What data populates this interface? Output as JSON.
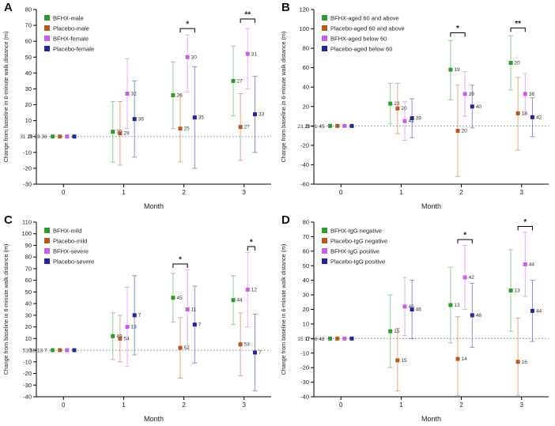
{
  "figure": {
    "background": "#ffffff",
    "axis_color": "#000000",
    "zero_line_color": "#888888"
  },
  "chart_data": [
    {
      "panel_label": "A",
      "type": "scatter",
      "xlabel": "Month",
      "ylabel": "Change from baseline in 6-minute walk distance (m)",
      "ylim": [
        -30,
        80
      ],
      "ytick": 10,
      "months": [
        0,
        1,
        2,
        3
      ],
      "legend_position": "top-left",
      "grid": false,
      "zero_line": true,
      "baseline_n_label": "31 29 33 36",
      "series": [
        {
          "name": "BFHX-male",
          "color": "#339933",
          "values": [
            0,
            3,
            26,
            35
          ],
          "lo": [
            0,
            -16,
            5,
            13
          ],
          "hi": [
            0,
            22,
            47,
            57
          ],
          "n": [
            31,
            30,
            26,
            27
          ]
        },
        {
          "name": "Placebo-male",
          "color": "#b25a22",
          "values": [
            0,
            2,
            5,
            6
          ],
          "lo": [
            0,
            -18,
            -16,
            -15
          ],
          "hi": [
            0,
            22,
            26,
            27
          ],
          "n": [
            29,
            29,
            25,
            27
          ]
        },
        {
          "name": "BFHX-female",
          "color": "#c95fde",
          "values": [
            0,
            27,
            50,
            52
          ],
          "lo": [
            0,
            5,
            28,
            30
          ],
          "hi": [
            0,
            49,
            64,
            68
          ],
          "n": [
            33,
            32,
            30,
            31
          ]
        },
        {
          "name": "Placebo-female",
          "color": "#23268f",
          "values": [
            0,
            11,
            12,
            14
          ],
          "lo": [
            0,
            -13,
            -20,
            -10
          ],
          "hi": [
            0,
            35,
            44,
            38
          ],
          "n": [
            36,
            36,
            35,
            33
          ]
        }
      ],
      "significance": [
        {
          "month": 2,
          "from_series": 1,
          "to_series": 3,
          "y": 68,
          "label": "*"
        },
        {
          "month": 3,
          "from_series": 1,
          "to_series": 3,
          "y": 74,
          "label": "**"
        }
      ]
    },
    {
      "panel_label": "B",
      "type": "scatter",
      "xlabel": "Month",
      "ylabel": "Change from baseline in 6-minute walk distance (m)",
      "ylim": [
        -60,
        120
      ],
      "ytick": 20,
      "months": [
        0,
        1,
        2,
        3
      ],
      "legend_position": "top-left",
      "grid": false,
      "zero_line": true,
      "baseline_n_label": "23 20 41 45",
      "series": [
        {
          "name": "BFHX-aged 60 and above",
          "color": "#339933",
          "values": [
            0,
            23,
            58,
            65
          ],
          "lo": [
            0,
            2,
            27,
            37
          ],
          "hi": [
            0,
            44,
            88,
            93
          ],
          "n": [
            23,
            23,
            19,
            20
          ]
        },
        {
          "name": "Placebo-aged 60 and above",
          "color": "#b25a22",
          "values": [
            0,
            18,
            -5,
            13
          ],
          "lo": [
            0,
            -8,
            -52,
            -25
          ],
          "hi": [
            0,
            44,
            42,
            50
          ],
          "n": [
            20,
            20,
            20,
            18
          ]
        },
        {
          "name": "BFHX-aged below 60",
          "color": "#c95fde",
          "values": [
            0,
            5,
            33,
            33
          ],
          "lo": [
            0,
            -15,
            10,
            12
          ],
          "hi": [
            0,
            25,
            56,
            54
          ],
          "n": [
            41,
            41,
            39,
            38
          ]
        },
        {
          "name": "Placebo-aged below 60",
          "color": "#23268f",
          "values": [
            0,
            8,
            20,
            9
          ],
          "lo": [
            0,
            -12,
            -2,
            -11
          ],
          "hi": [
            0,
            28,
            42,
            29
          ],
          "n": [
            45,
            39,
            40,
            42
          ]
        }
      ],
      "significance": [
        {
          "month": 2,
          "from_series": 0,
          "to_series": 2,
          "y": 96,
          "label": "*"
        },
        {
          "month": 3,
          "from_series": 0,
          "to_series": 2,
          "y": 101,
          "label": "**"
        }
      ]
    },
    {
      "panel_label": "C",
      "type": "scatter",
      "xlabel": "Month",
      "ylabel": "Change from baseline in 6-minute walk distance (m)",
      "ylim": [
        -40,
        110
      ],
      "ytick": 10,
      "months": [
        0,
        1,
        2,
        3
      ],
      "legend_position": "top-left",
      "grid": false,
      "zero_line": true,
      "baseline_n_label": "51 58 13 7",
      "series": [
        {
          "name": "BFHX-mild",
          "color": "#339933",
          "values": [
            0,
            12,
            45,
            43
          ],
          "lo": [
            0,
            -8,
            24,
            22
          ],
          "hi": [
            0,
            32,
            66,
            64
          ],
          "n": [
            51,
            49,
            45,
            44
          ]
        },
        {
          "name": "Placebo-mild",
          "color": "#b25a22",
          "values": [
            0,
            10,
            2,
            5
          ],
          "lo": [
            0,
            -10,
            -24,
            -22
          ],
          "hi": [
            0,
            30,
            28,
            32
          ],
          "n": [
            58,
            54,
            52,
            53
          ]
        },
        {
          "name": "BFHX-severe",
          "color": "#c95fde",
          "values": [
            0,
            20,
            35,
            52
          ],
          "lo": [
            0,
            -14,
            1,
            20
          ],
          "hi": [
            0,
            54,
            69,
            84
          ],
          "n": [
            13,
            13,
            11,
            12
          ]
        },
        {
          "name": "Placebo-severe",
          "color": "#23268f",
          "values": [
            0,
            30,
            22,
            -2
          ],
          "lo": [
            0,
            -4,
            -11,
            -35
          ],
          "hi": [
            0,
            64,
            55,
            31
          ],
          "n": [
            7,
            7,
            7,
            7
          ]
        }
      ],
      "significance": [
        {
          "month": 2,
          "from_series": 0,
          "to_series": 2,
          "y": 74,
          "label": "*"
        },
        {
          "month": 3,
          "from_series": 2,
          "to_series": 3,
          "y": 89,
          "label": "*"
        }
      ]
    },
    {
      "panel_label": "D",
      "type": "scatter",
      "xlabel": "Month",
      "ylabel": "Change from baseline in 6-minute walk distance (m)",
      "ylim": [
        -40,
        80
      ],
      "ytick": 10,
      "months": [
        0,
        1,
        2,
        3
      ],
      "legend_position": "top-left",
      "grid": false,
      "zero_line": true,
      "baseline_n_label": "15 17 48 48",
      "series": [
        {
          "name": "BFHX-IgG negative",
          "color": "#339933",
          "values": [
            0,
            5,
            23,
            33
          ],
          "lo": [
            0,
            -20,
            -3,
            5
          ],
          "hi": [
            0,
            30,
            49,
            61
          ],
          "n": [
            15,
            15,
            13,
            13
          ]
        },
        {
          "name": "Placebo-IgG negative",
          "color": "#b25a22",
          "values": [
            0,
            -15,
            -14,
            -16
          ],
          "lo": [
            0,
            -36,
            -39,
            -39
          ],
          "hi": [
            0,
            7,
            15,
            14
          ],
          "n": [
            17,
            15,
            14,
            16
          ]
        },
        {
          "name": "BFHX-IgG positive",
          "color": "#c95fde",
          "values": [
            0,
            22,
            42,
            51
          ],
          "lo": [
            0,
            2,
            20,
            29
          ],
          "hi": [
            0,
            42,
            64,
            73
          ],
          "n": [
            48,
            46,
            42,
            44
          ]
        },
        {
          "name": "Placebo-IgG positive",
          "color": "#23268f",
          "values": [
            0,
            20,
            16,
            19
          ],
          "lo": [
            0,
            0,
            -6,
            -2
          ],
          "hi": [
            0,
            40,
            38,
            40
          ],
          "n": [
            48,
            46,
            46,
            44
          ]
        }
      ],
      "significance": [
        {
          "month": 2,
          "from_series": 1,
          "to_series": 3,
          "y": 68,
          "label": "*"
        },
        {
          "month": 3,
          "from_series": 1,
          "to_series": 3,
          "y": 77,
          "label": "*"
        }
      ]
    }
  ]
}
